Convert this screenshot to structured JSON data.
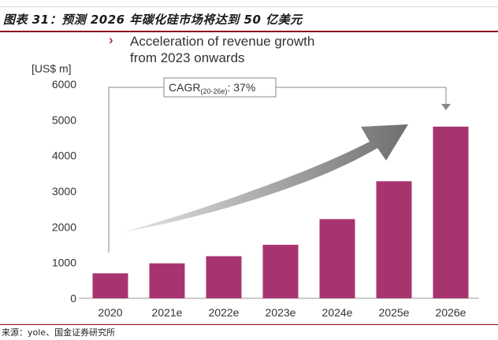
{
  "figure_title": "图表 31：预测 2026 年碳化硅市场将达到 50 亿美元",
  "source": "来源：yole、国金证券研究所",
  "colors": {
    "bar": "#a8346f",
    "arrow_dark": "#6f6f6f",
    "arrow_light": "#e6e6e6",
    "title_rule": "#8b0f1d",
    "bullet": "#a8346f"
  },
  "chart_data": {
    "type": "bar",
    "title_bullet": "›",
    "title_line1": "Acceleration of revenue growth",
    "title_line2": "from 2023 onwards",
    "ylabel": "[US$ m]",
    "categories": [
      "2020",
      "2021e",
      "2022e",
      "2023e",
      "2024e",
      "2025e",
      "2026e"
    ],
    "values": [
      700,
      980,
      1180,
      1500,
      2220,
      3280,
      4810
    ],
    "ylim": [
      0,
      6000
    ],
    "yticks": [
      0,
      1000,
      2000,
      3000,
      4000,
      5000,
      6000
    ],
    "annotation": {
      "main": "CAGR",
      "sub": "(20-26e)",
      "suffix": ": 37%"
    },
    "grid": false,
    "legend": "none"
  }
}
